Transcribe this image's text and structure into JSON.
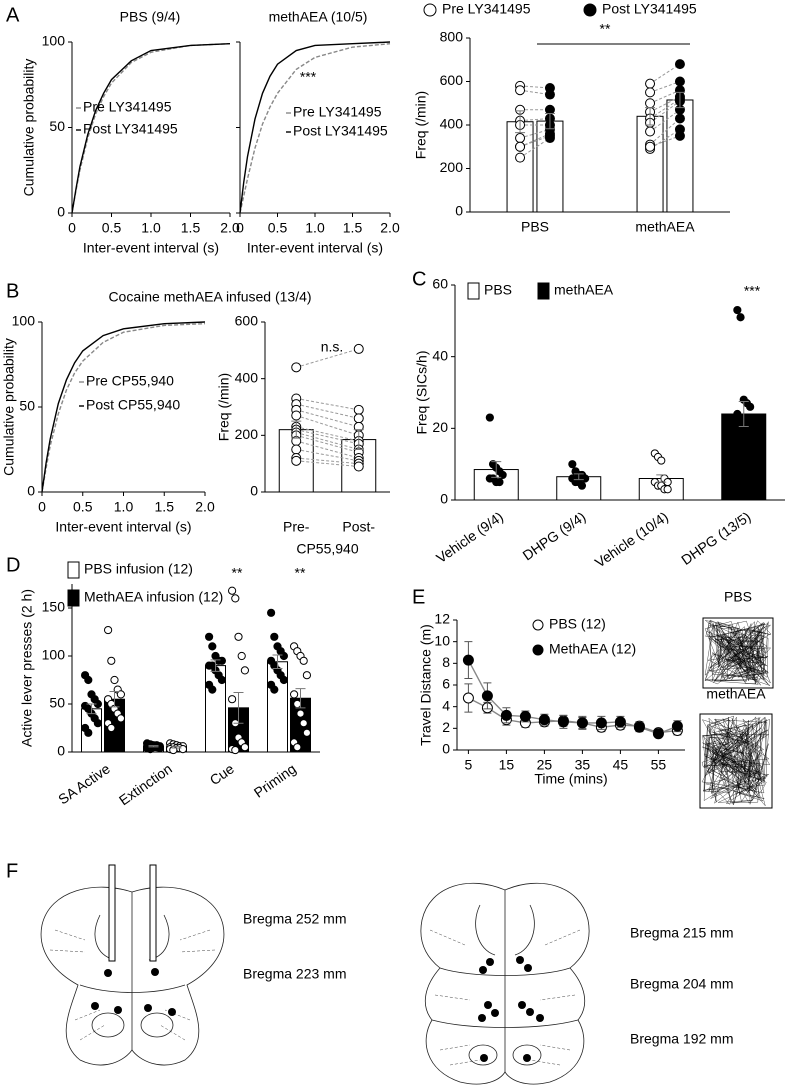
{
  "panel_labels": [
    "A",
    "B",
    "C",
    "D",
    "E",
    "F"
  ],
  "brain_sections": {
    "labels": [
      "Bregma 252 mm",
      "Bregma 223 mm",
      "Bregma 215 mm",
      "Bregma 204 mm",
      "Bregma 192 mm"
    ]
  },
  "chart_data": [
    {
      "type": "line",
      "title": "PBS (9/4)",
      "xlabel": "Inter-event interval (s)",
      "ylabel": "Cumulative probability",
      "x": [
        0,
        0.05,
        0.1,
        0.2,
        0.3,
        0.4,
        0.5,
        0.75,
        1,
        1.5,
        2
      ],
      "series": [
        {
          "name": "Pre LY341495",
          "color": "#888888",
          "dashed": true,
          "values": [
            0,
            13,
            25,
            44,
            58,
            68,
            76,
            88,
            94,
            98,
            99
          ]
        },
        {
          "name": "Post LY341495",
          "color": "#000000",
          "dashed": false,
          "values": [
            0,
            14,
            27,
            46,
            60,
            70,
            78,
            89,
            95,
            98,
            99
          ]
        }
      ],
      "xlim": [
        0,
        2
      ],
      "xticks": [
        0,
        0.5,
        {
          "value": 1,
          "label": "1.0"
        },
        1.5,
        {
          "value": 2,
          "label": "2.0"
        }
      ],
      "ylim": [
        0,
        100
      ],
      "yticks": [
        0,
        50,
        100
      ]
    },
    {
      "type": "line",
      "title": "methAEA (10/5)",
      "xlabel": "Inter-event interval (s)",
      "annotations": [
        "***"
      ],
      "x": [
        0,
        0.05,
        0.1,
        0.2,
        0.3,
        0.4,
        0.5,
        0.75,
        1,
        1.5,
        2
      ],
      "series": [
        {
          "name": "Pre LY341495",
          "color": "#888888",
          "dashed": true,
          "values": [
            0,
            10,
            20,
            38,
            52,
            62,
            70,
            84,
            91,
            97,
            99
          ]
        },
        {
          "name": "Post LY341495",
          "color": "#000000",
          "dashed": false,
          "values": [
            0,
            18,
            33,
            55,
            70,
            80,
            87,
            95,
            98,
            99,
            100
          ]
        }
      ],
      "xlim": [
        0,
        2
      ],
      "xticks": [
        0,
        0.5,
        {
          "value": 1,
          "label": "1.0"
        },
        1.5,
        {
          "value": 2,
          "label": "2.0"
        }
      ],
      "ylim": [
        0,
        100
      ],
      "yticks": [
        0,
        50,
        100
      ]
    },
    {
      "type": "bar",
      "ylabel": "Freq (/min)",
      "annotations": [
        "**"
      ],
      "categories": [
        "PBS",
        "methAEA"
      ],
      "series": [
        {
          "name": "Pre LY341495",
          "fill": "white",
          "point_fill": "white",
          "values": [
            415,
            440
          ],
          "errors": [
            50,
            40
          ],
          "points": [
            [
              580,
              560,
              470,
              420,
              400,
              340,
              300,
              250,
              300
            ],
            [
              590,
              550,
              500,
              460,
              430,
              410,
              370,
              310,
              290,
              300
            ]
          ]
        },
        {
          "name": "Post LY341495",
          "fill": "white",
          "point_fill": "black",
          "values": [
            418,
            515
          ],
          "errors": [
            35,
            35
          ],
          "points": [
            [
              570,
              540,
              470,
              430,
              400,
              380,
              360,
              340,
              350
            ],
            [
              680,
              600,
              560,
              530,
              520,
              510,
              470,
              430,
              380,
              350
            ]
          ]
        }
      ],
      "ylim": [
        0,
        800
      ],
      "yticks": [
        0,
        200,
        400,
        600,
        800
      ]
    },
    {
      "type": "line",
      "title": "Cocaine methAEA infused (13/4)",
      "xlabel": "Inter-event interval (s)",
      "ylabel": "Cumulative probability",
      "x": [
        0,
        0.05,
        0.1,
        0.2,
        0.3,
        0.4,
        0.5,
        0.75,
        1,
        1.5,
        2
      ],
      "series": [
        {
          "name": "Pre CP55,940",
          "color": "#888888",
          "dashed": true,
          "values": [
            0,
            14,
            27,
            46,
            60,
            70,
            77,
            88,
            94,
            98,
            99
          ]
        },
        {
          "name": "Post CP55,940",
          "color": "#000000",
          "dashed": false,
          "values": [
            0,
            17,
            31,
            52,
            66,
            76,
            83,
            92,
            96,
            99,
            100
          ]
        }
      ],
      "xlim": [
        0,
        2
      ],
      "xticks": [
        0,
        0.5,
        {
          "value": 1,
          "label": "1.0"
        },
        1.5,
        {
          "value": 2,
          "label": "2.0"
        }
      ],
      "ylim": [
        0,
        100
      ],
      "yticks": [
        0,
        50,
        100
      ]
    },
    {
      "type": "bar",
      "ylabel": "Freq (/min)",
      "xlabel": "CP55,940",
      "annotations": [
        "n.s."
      ],
      "categories": [
        "Pre-",
        "Post-"
      ],
      "fill": "white",
      "point_fill": "white",
      "values": [
        220,
        185
      ],
      "errors": [
        30,
        35
      ],
      "points": [
        [
          440,
          330,
          310,
          290,
          270,
          230,
          220,
          210,
          200,
          180,
          150,
          120,
          110
        ],
        [
          505,
          290,
          260,
          230,
          200,
          180,
          170,
          150,
          140,
          120,
          110,
          100,
          90
        ]
      ],
      "ylim": [
        0,
        600
      ],
      "yticks": [
        0,
        200,
        400,
        600
      ]
    },
    {
      "type": "bar",
      "ylabel": "Freq (SICs/h)",
      "annotations": [
        "***"
      ],
      "categories": [
        "Vehicle (9/4)",
        "DHPG (9/4)",
        "Vehicle (10/4)",
        "DHPG (13/5)"
      ],
      "legend": [
        {
          "name": "PBS",
          "fill": "white"
        },
        {
          "name": "methAEA",
          "fill": "black"
        }
      ],
      "bar_fills": [
        "white",
        "white",
        "white",
        "black"
      ],
      "point_fills": [
        "black",
        "black",
        "white",
        "black"
      ],
      "values": [
        8.5,
        6.5,
        6,
        24
      ],
      "errors": [
        2.2,
        0.8,
        1,
        3.5
      ],
      "points": [
        [
          23,
          10,
          9,
          8,
          7,
          6,
          6,
          5,
          5
        ],
        [
          10,
          8,
          7,
          7,
          6,
          6,
          5,
          5,
          4
        ],
        [
          13,
          12,
          11,
          6,
          5,
          5,
          4,
          4,
          3,
          3
        ],
        [
          53,
          51,
          28,
          27,
          26,
          24,
          22,
          20,
          20,
          18,
          15,
          12,
          10
        ]
      ],
      "ylim": [
        0,
        60
      ],
      "yticks": [
        0,
        20,
        40,
        60
      ]
    },
    {
      "type": "bar",
      "ylabel": "Active lever presses (2 h)",
      "annotations": [
        "**",
        "**"
      ],
      "categories": [
        "SA Active",
        "Extinction",
        "Cue",
        "Priming"
      ],
      "series": [
        {
          "name": "PBS infusion (12)",
          "fill": "white",
          "point_fill": "black",
          "values": [
            45,
            6,
            90,
            94
          ],
          "errors": [
            5,
            0.6,
            6,
            7
          ],
          "points": [
            [
              80,
              75,
              60,
              55,
              50,
              48,
              45,
              40,
              35,
              30,
              25,
              20
            ],
            [
              9,
              8,
              7,
              7,
              6,
              6,
              5,
              5,
              5,
              4,
              4,
              3
            ],
            [
              120,
              110,
              100,
              95,
              95,
              90,
              90,
              85,
              80,
              75,
              70,
              65
            ],
            [
              145,
              120,
              110,
              105,
              100,
              95,
              90,
              85,
              80,
              75,
              70,
              65
            ]
          ]
        },
        {
          "name": "MethAEA infusion (12)",
          "fill": "black",
          "point_fill": "white",
          "values": [
            55,
            5,
            46,
            56
          ],
          "errors": [
            8,
            0.8,
            16,
            10
          ],
          "points": [
            [
              127,
              95,
              75,
              65,
              60,
              55,
              50,
              45,
              40,
              35,
              30,
              25
            ],
            [
              9,
              8,
              7,
              6,
              6,
              5,
              5,
              4,
              4,
              3,
              3,
              2
            ],
            [
              168,
              160,
              120,
              100,
              85,
              55,
              30,
              15,
              10,
              5,
              3,
              2
            ],
            [
              110,
              105,
              100,
              95,
              80,
              60,
              50,
              40,
              30,
              20,
              10,
              5
            ]
          ]
        }
      ],
      "ylim": [
        0,
        175
      ],
      "yticks": [
        0,
        50,
        100,
        150
      ]
    },
    {
      "type": "line",
      "xlabel": "Time (mins)",
      "ylabel": "Travel Distance (m)",
      "image_labels": [
        "PBS",
        "methAEA"
      ],
      "x": [
        5,
        10,
        15,
        20,
        25,
        30,
        35,
        40,
        45,
        50,
        55,
        60
      ],
      "series": [
        {
          "name": "PBS (12)",
          "color": "#888888",
          "marker_fill": "white",
          "values": [
            4.8,
            3.9,
            2.8,
            2.5,
            2.6,
            2.7,
            2.5,
            2.1,
            2.3,
            2.2,
            1.6,
            1.8
          ],
          "errors": [
            1.3,
            0.5,
            0.5,
            0.4,
            0.4,
            0.5,
            0.5,
            0.4,
            0.4,
            0.4,
            0.3,
            0.4
          ]
        },
        {
          "name": "MethAEA (12)",
          "color": "#888888",
          "marker_fill": "black",
          "values": [
            8.3,
            5.0,
            3.2,
            3.1,
            2.8,
            2.6,
            2.5,
            2.5,
            2.6,
            2.1,
            1.5,
            2.2
          ],
          "errors": [
            1.7,
            1.2,
            0.7,
            0.5,
            0.5,
            0.6,
            0.6,
            0.6,
            0.5,
            0.4,
            0.3,
            0.5
          ]
        }
      ],
      "xlim": [
        2,
        62
      ],
      "xticks": [
        5,
        15,
        25,
        35,
        45,
        55
      ],
      "ylim": [
        0,
        12
      ],
      "yticks": [
        0,
        2,
        4,
        6,
        8,
        10,
        12
      ]
    }
  ]
}
